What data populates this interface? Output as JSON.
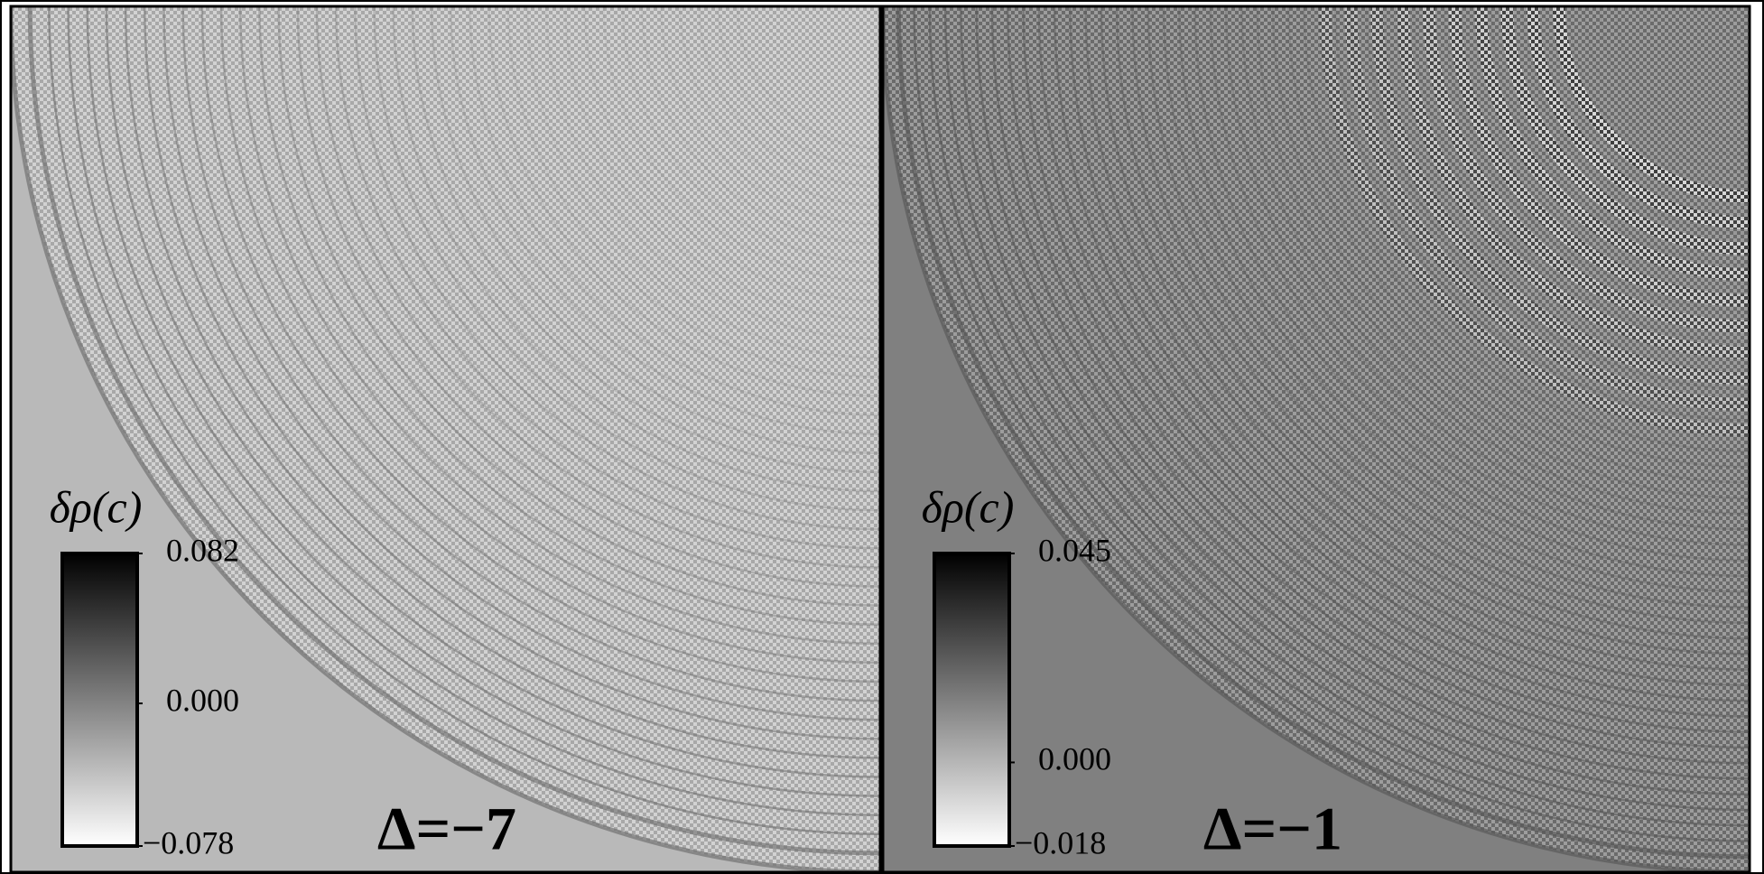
{
  "chart_data": [
    {
      "type": "heatmap",
      "annotation": "Δ=−7",
      "colorbar_label": "δρ(c)",
      "clim": [
        -0.078,
        0.082
      ],
      "cticks": [
        {
          "value": -0.078,
          "label": "−0.078"
        },
        {
          "value": 0,
          "label": "0.000"
        },
        0.082
      ]
    },
    {
      "type": "heatmap",
      "annotation": "Δ=−1",
      "colorbar_label": "δρ(c)",
      "clim": [
        -0.018,
        0.045
      ],
      "cticks": [
        {
          "value": -0.018,
          "label": "−0.018"
        },
        {
          "value": 0,
          "label": "0.000"
        },
        0.045
      ]
    }
  ]
}
